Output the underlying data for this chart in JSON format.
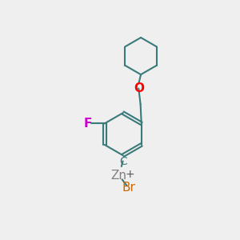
{
  "background_color": "#efefef",
  "bond_color": "#3a7a7a",
  "bond_width": 1.5,
  "F_color": "#cc00cc",
  "O_color": "#ff0000",
  "Zn_color": "#808080",
  "Br_color": "#cc6600",
  "C_color": "#3a7a7a",
  "plus_color": "#555555",
  "figsize": [
    3.0,
    3.0
  ],
  "dpi": 100,
  "xlim": [
    0,
    10
  ],
  "ylim": [
    0,
    10
  ]
}
